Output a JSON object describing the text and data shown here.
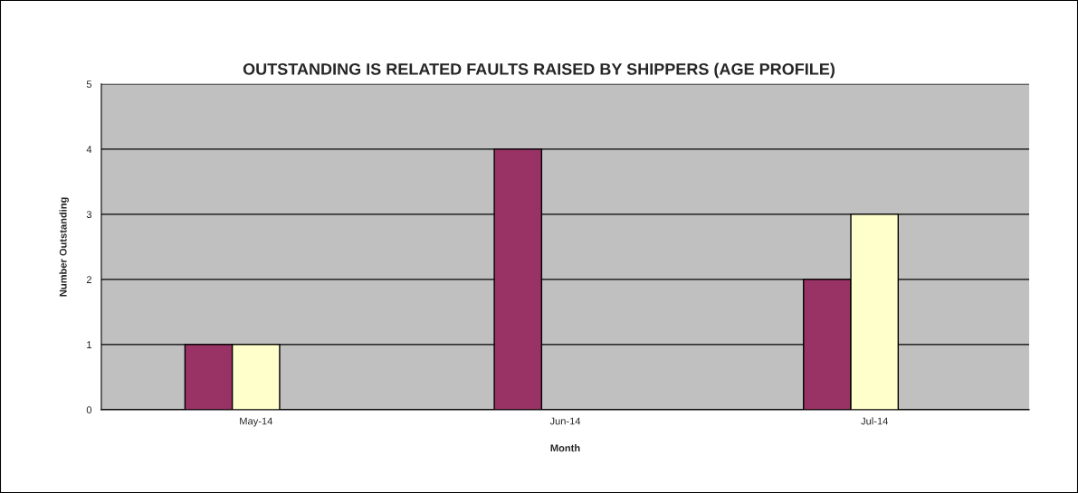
{
  "chart_data": {
    "type": "bar",
    "title": "OUTSTANDING IS RELATED FAULTS RAISED BY SHIPPERS (AGE PROFILE)",
    "xlabel": "Month",
    "ylabel": "Number Outstanding",
    "categories": [
      "May-14",
      "Jun-14",
      "Jul-14"
    ],
    "series": [
      {
        "color": "#993366",
        "values": [
          1,
          4,
          2
        ]
      },
      {
        "color": "#ffffcc",
        "values": [
          1,
          null,
          3
        ]
      }
    ],
    "ylim": [
      0,
      5
    ],
    "yticks": [
      0,
      1,
      2,
      3,
      4,
      5
    ],
    "grid": "y",
    "legend": false
  }
}
